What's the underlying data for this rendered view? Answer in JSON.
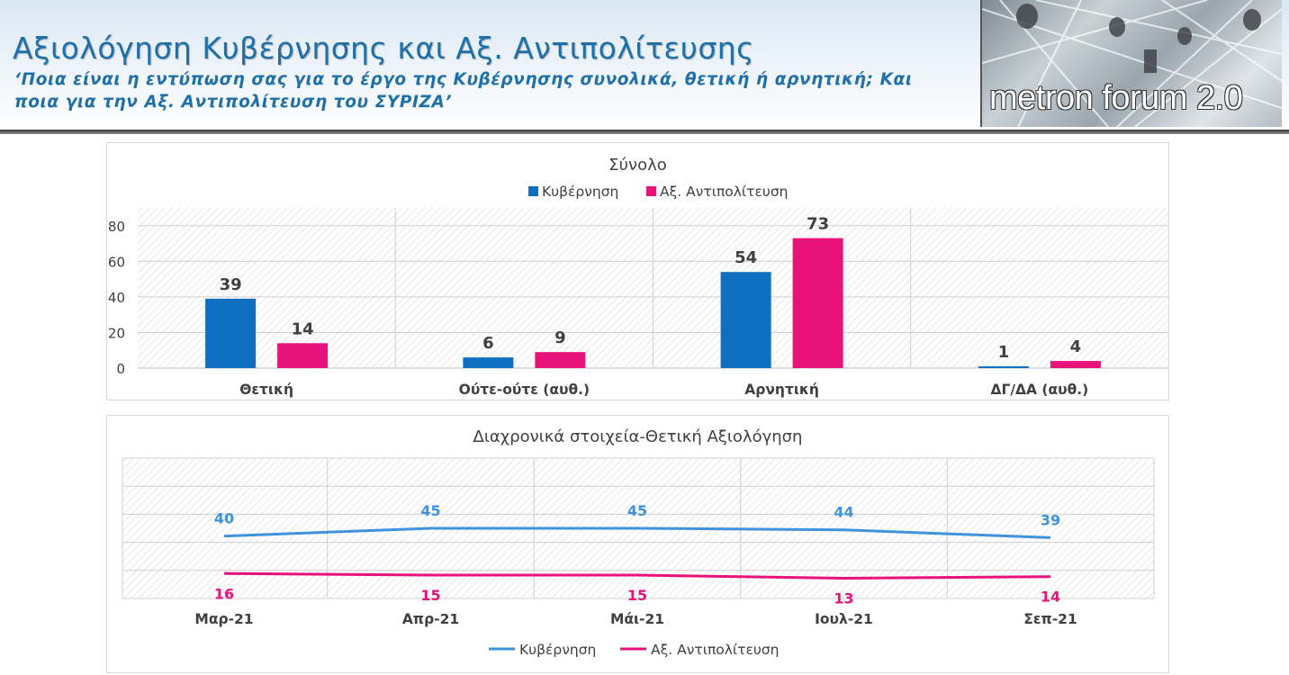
{
  "header": {
    "title": "Αξιολόγηση Κυβέρνησης και Αξ. Αντιπολίτευσης",
    "subtitle": "‘Ποια είναι η εντύπωση σας για το έργο της Κυβέρνησης συνολικά, θετική ή αρνητική; Και ποια για την Αξ. Αντιπολίτευση του ΣΥΡΙΖΑ’",
    "logo_text": "metron forum 2.0"
  },
  "colors": {
    "government_bar": "#0f6fc0",
    "opposition": "#e8137a",
    "government_line": "#3e93db",
    "title_blue": "#1f6fa8"
  },
  "chart_data": [
    {
      "type": "bar",
      "title": "Σύνολο",
      "categories": [
        "Θετική",
        "Ούτε-ούτε (αυθ.)",
        "Αρνητική",
        "ΔΓ/ΔΑ (αυθ.)"
      ],
      "series": [
        {
          "name": "Κυβέρνηση",
          "values": [
            39,
            6,
            54,
            1
          ]
        },
        {
          "name": "Αξ. Αντιπολίτευση",
          "values": [
            14,
            9,
            73,
            4
          ]
        }
      ],
      "yticks": [
        "0",
        "20",
        "40",
        "60",
        "80"
      ],
      "ylim": [
        0,
        90
      ],
      "grid": true,
      "legend": "top"
    },
    {
      "type": "line",
      "title": "Διαχρονικά στοιχεία-Θετική Αξιολόγηση",
      "categories": [
        "Μαρ-21",
        "Απρ-21",
        "Μάι-21",
        "Ιουλ-21",
        "Σεπ-21"
      ],
      "series": [
        {
          "name": "Κυβέρνηση",
          "values": [
            40,
            45,
            45,
            44,
            39
          ]
        },
        {
          "name": "Αξ. Αντιπολίτευση",
          "values": [
            16,
            15,
            15,
            13,
            14
          ]
        }
      ],
      "ylim": [
        0,
        90
      ],
      "grid": true,
      "legend": "bottom"
    }
  ]
}
